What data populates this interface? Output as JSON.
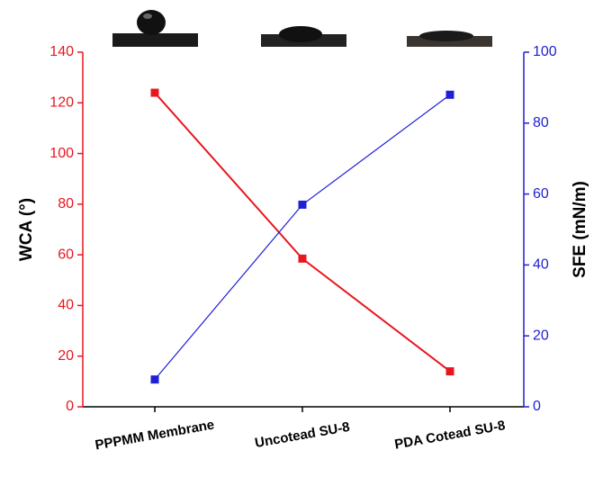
{
  "chart_data": {
    "type": "line",
    "categories": [
      "PPPMM Membrane",
      "Uncotead SU-8",
      "PDA Cotead SU-8"
    ],
    "ylabel": "WCA (°)",
    "y2label": "SFE (mN/m)",
    "ylim": [
      0,
      140
    ],
    "yticks": [
      0,
      20,
      40,
      60,
      80,
      100,
      120,
      140
    ],
    "y2lim": [
      0,
      100
    ],
    "y2ticks": [
      0,
      20,
      40,
      60,
      80,
      100
    ],
    "series": [
      {
        "color": "#e8161f",
        "values": [
          124,
          58.5,
          14
        ]
      },
      {
        "color": "#1f1fd6",
        "values": [
          7.7,
          57,
          88
        ],
        "axis": "y2"
      }
    ]
  }
}
